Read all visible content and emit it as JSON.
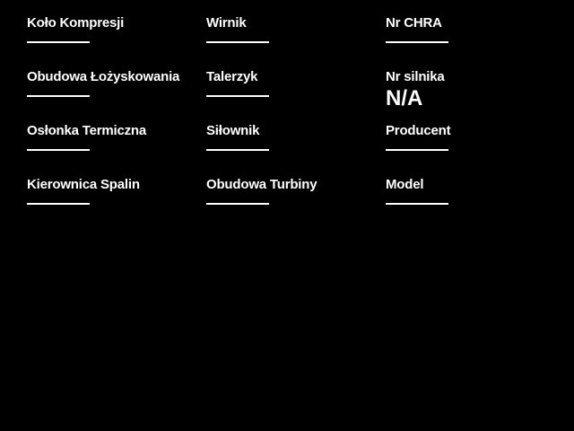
{
  "app": {
    "background": "#000000",
    "text_color": "#ffffff",
    "underline_color": "#ffffff"
  },
  "form": {
    "columns": [
      {
        "fields": [
          {
            "label": "Koło Kompresji",
            "value": ""
          },
          {
            "label": "Obudowa Łożyskowania",
            "value": ""
          },
          {
            "label": "Osłonka Termiczna",
            "value": ""
          },
          {
            "label": "Kierownica Spalin",
            "value": ""
          }
        ]
      },
      {
        "fields": [
          {
            "label": "Wirnik",
            "value": ""
          },
          {
            "label": "Talerzyk",
            "value": ""
          },
          {
            "label": "Siłownik",
            "value": ""
          },
          {
            "label": "Obudowa Turbiny",
            "value": ""
          }
        ]
      },
      {
        "fields": [
          {
            "label": "Nr CHRA",
            "value": ""
          },
          {
            "label": "Nr silnika",
            "value": "N/A"
          },
          {
            "label": "Producent",
            "value": ""
          },
          {
            "label": "Model",
            "value": ""
          }
        ]
      }
    ]
  }
}
